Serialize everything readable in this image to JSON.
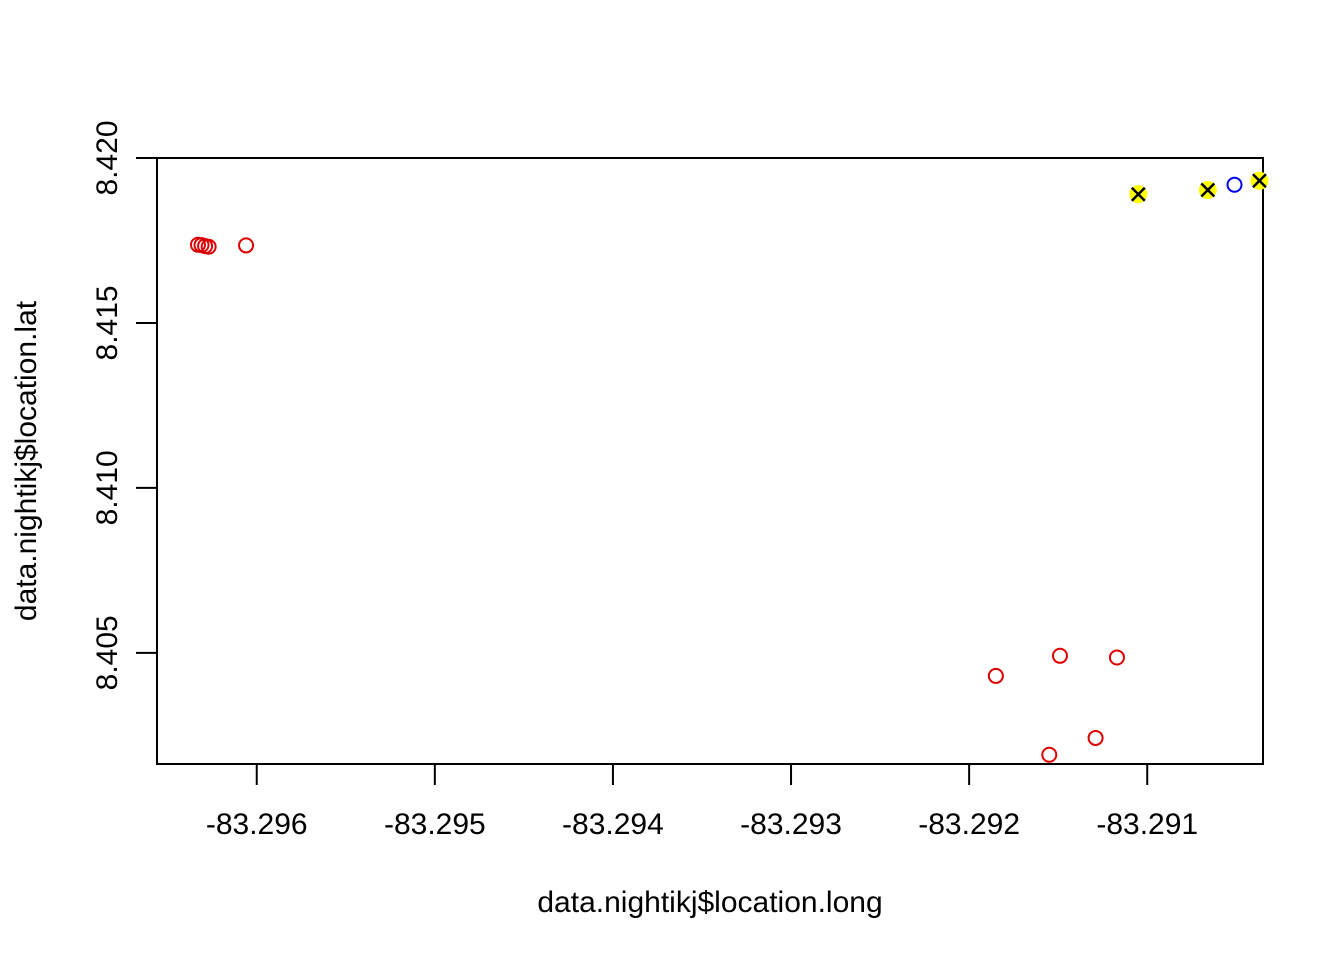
{
  "chart_data": {
    "type": "scatter",
    "xlabel": "data.nightikj$location.long",
    "ylabel": "data.nightikj$location.lat",
    "xlim": [
      -83.29656,
      -83.29035
    ],
    "ylim": [
      8.40163,
      8.42
    ],
    "x_ticks": [
      -83.296,
      -83.295,
      -83.294,
      -83.293,
      -83.292,
      -83.291
    ],
    "x_tick_labels": [
      "-83.296",
      "-83.295",
      "-83.294",
      "-83.293",
      "-83.292",
      "-83.291"
    ],
    "y_ticks": [
      8.405,
      8.41,
      8.415,
      8.42
    ],
    "y_tick_labels": [
      "8.405",
      "8.410",
      "8.415",
      "8.420"
    ],
    "grid": false,
    "series": [
      {
        "marker": "open-circle",
        "color": "#dd0000",
        "points": [
          {
            "x": -83.29633,
            "y": 8.41737
          },
          {
            "x": -83.29631,
            "y": 8.41736
          },
          {
            "x": -83.29629,
            "y": 8.41733
          },
          {
            "x": -83.29627,
            "y": 8.41731
          },
          {
            "x": -83.29606,
            "y": 8.41735
          },
          {
            "x": -83.29185,
            "y": 8.4043
          },
          {
            "x": -83.29149,
            "y": 8.40491
          },
          {
            "x": -83.29117,
            "y": 8.40486
          },
          {
            "x": -83.29129,
            "y": 8.40242
          },
          {
            "x": -83.29155,
            "y": 8.40191
          }
        ]
      },
      {
        "marker": "open-circle",
        "color": "#0000ee",
        "points": [
          {
            "x": -83.29051,
            "y": 8.41919
          }
        ]
      },
      {
        "marker": "x-on-yellow-circle",
        "color": "#000000",
        "fill": "#ffff00",
        "points": [
          {
            "x": -83.29105,
            "y": 8.4189
          },
          {
            "x": -83.29066,
            "y": 8.41903
          },
          {
            "x": -83.29037,
            "y": 8.41931
          }
        ]
      }
    ]
  }
}
